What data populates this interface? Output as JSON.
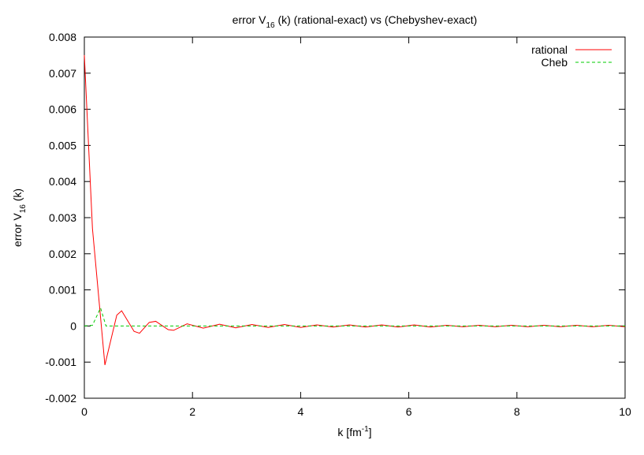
{
  "chart_data": {
    "type": "line",
    "title": [
      "error V",
      "16",
      " (k) (rational-exact) vs (Chebyshev-exact)"
    ],
    "xlabel": [
      "k [fm",
      "-1",
      "]"
    ],
    "ylabel": [
      "error V",
      "16",
      " (k)"
    ],
    "xlim": [
      0,
      10
    ],
    "xticks": [
      0,
      2,
      4,
      6,
      8,
      10
    ],
    "ylim": [
      -0.002,
      0.008
    ],
    "yticks": [
      -0.002,
      -0.001,
      0,
      0.001,
      0.002,
      0.003,
      0.004,
      0.005,
      0.006,
      0.007,
      0.008
    ],
    "grid": false,
    "legend": "top-right",
    "series": [
      {
        "name": "rational",
        "color": "#ff0000",
        "dash": false,
        "x": [
          0,
          0.15,
          0.38,
          0.6,
          0.69,
          0.92,
          1.02,
          1.2,
          1.32,
          1.55,
          1.65,
          1.9,
          2.2,
          2.5,
          2.8,
          3.1,
          3.4,
          3.7,
          4.0,
          4.3,
          4.6,
          4.9,
          5.2,
          5.5,
          5.8,
          6.1,
          6.4,
          6.7,
          7.0,
          7.3,
          7.6,
          7.9,
          8.2,
          8.5,
          8.8,
          9.1,
          9.4,
          9.7,
          10
        ],
        "values": [
          0.0075,
          0.0027,
          -0.00108,
          0.0003,
          0.00042,
          -0.00015,
          -0.0002,
          0.0001,
          0.00013,
          -0.0001,
          -0.00012,
          6e-05,
          -6e-05,
          5e-05,
          -5e-05,
          4e-05,
          -4e-05,
          4e-05,
          -4e-05,
          3e-05,
          -3e-05,
          3e-05,
          -3e-05,
          3e-05,
          -3e-05,
          3e-05,
          -3e-05,
          2e-05,
          -2e-05,
          2e-05,
          -2e-05,
          2e-05,
          -2e-05,
          2e-05,
          -2e-05,
          2e-05,
          -2e-05,
          2e-05,
          -2e-05
        ]
      },
      {
        "name": "Cheb",
        "color": "#00cc00",
        "dash": true,
        "x": [
          0,
          0.15,
          0.3,
          0.4,
          1,
          2,
          3,
          4,
          5,
          6,
          7,
          8,
          9,
          10
        ],
        "values": [
          0,
          2e-05,
          0.0005,
          0,
          0,
          0,
          0,
          0,
          0,
          0,
          0,
          0,
          0,
          0
        ]
      }
    ]
  }
}
